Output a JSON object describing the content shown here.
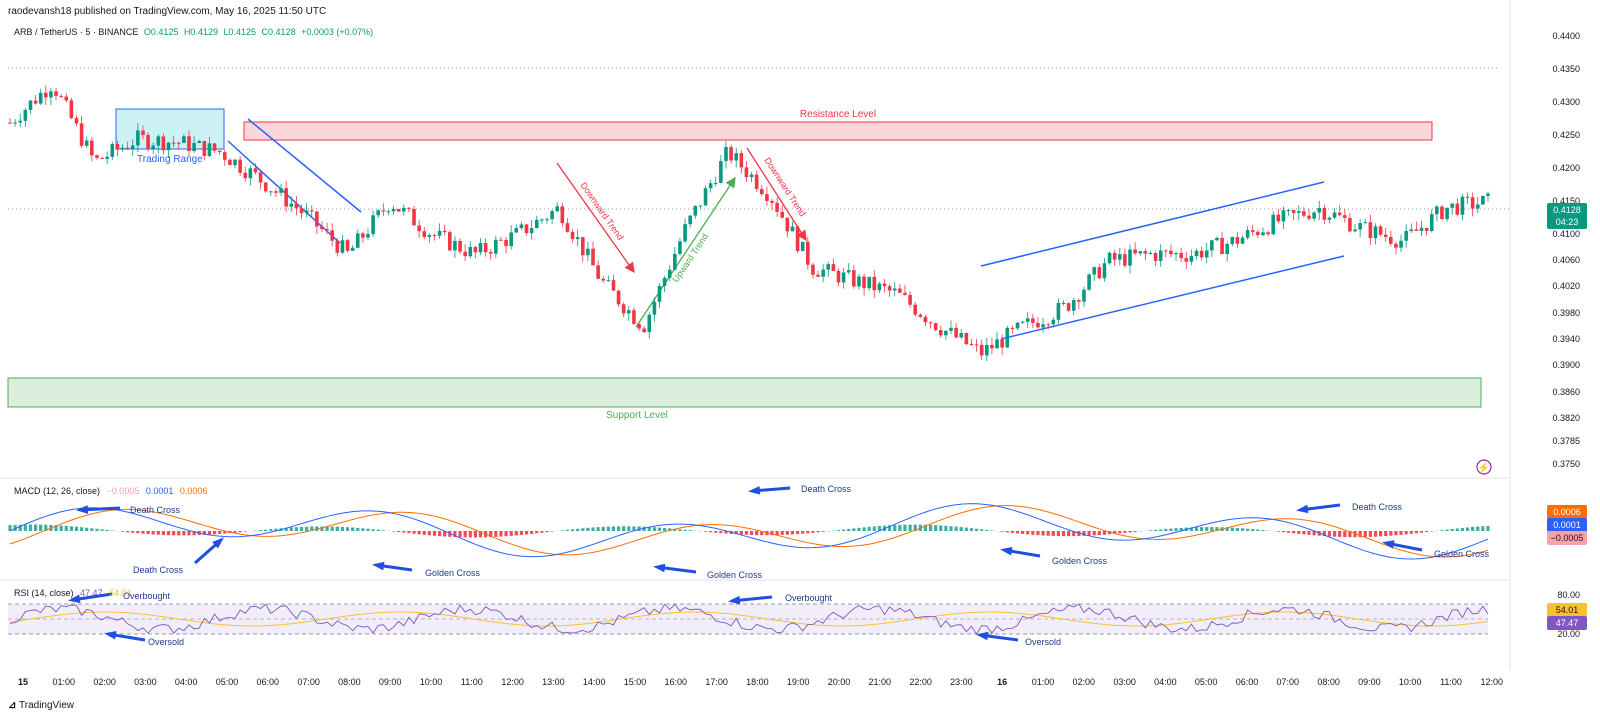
{
  "header": {
    "published_by": "raodevansh18 published on TradingView.com, May 16, 2025 11:50 UTC"
  },
  "symbol": {
    "title": "ARB / TetherUS · 5 · BINANCE",
    "open": "O0.4125",
    "high": "H0.4129",
    "low": "L0.4125",
    "close": "C0.4128",
    "change": "+0.0003 (+0.07%)"
  },
  "price_axis": {
    "ticks": [
      "0.4400",
      "0.4350",
      "0.4300",
      "0.4250",
      "0.4200",
      "0.4150",
      "0.4100",
      "0.4060",
      "0.4020",
      "0.3980",
      "0.3940",
      "0.3900",
      "0.3860",
      "0.3820",
      "0.3785",
      "0.3750"
    ],
    "last_price": "0.4128",
    "countdown": "04:23"
  },
  "time_axis": [
    "15",
    "01:00",
    "02:00",
    "03:00",
    "04:00",
    "05:00",
    "06:00",
    "07:00",
    "08:00",
    "09:00",
    "10:00",
    "11:00",
    "12:00",
    "13:00",
    "14:00",
    "15:00",
    "16:00",
    "17:00",
    "18:00",
    "19:00",
    "20:00",
    "21:00",
    "22:00",
    "23:00",
    "16",
    "01:00",
    "02:00",
    "03:00",
    "04:00",
    "05:00",
    "06:00",
    "07:00",
    "08:00",
    "09:00",
    "10:00",
    "11:00",
    "12:00"
  ],
  "annotations": {
    "trading_range": "Trading Range",
    "resistance": "Resistance Level",
    "support": "Support Level",
    "downward_trend_1": "Downward Trend",
    "upward_trend": "Upward Trend",
    "downward_trend_2": "Downward Trend"
  },
  "macd": {
    "title": "MACD (12, 26, close)",
    "hist": "−0.0005",
    "macd": "0.0001",
    "signal": "0.0006",
    "badge_signal": "0.0006",
    "badge_macd": "0.0001",
    "badge_hist": "−0.0005",
    "labels": [
      "Death Cross",
      "Death Cross",
      "Golden Cross",
      "Death Cross",
      "Golden Cross",
      "Golden Cross",
      "Death Cross",
      "Golden Cross"
    ]
  },
  "rsi": {
    "title": "RSI (14, close)",
    "rsi_value": "47.47",
    "ma_value": "54.01",
    "level_80": "80.00",
    "level_20": "20.00",
    "badge_ma": "54.01",
    "badge_rsi": "47.47",
    "labels": [
      "Overbought",
      "Oversold",
      "Overbought",
      "Oversold"
    ]
  },
  "brand": "TradingView",
  "colors": {
    "up": "#089981",
    "down": "#f23645",
    "macd_line": "#2962ff",
    "signal_line": "#ff6d00",
    "rsi_line": "#7e57c2",
    "rsi_ma": "#fbc02d",
    "arrow": "#1e4fe0"
  },
  "chart_data": {
    "type": "line",
    "title": "ARB / TetherUS · 5 · BINANCE",
    "x": [
      "15",
      "01:00",
      "02:00",
      "03:00",
      "04:00",
      "05:00",
      "06:00",
      "07:00",
      "08:00",
      "09:00",
      "10:00",
      "11:00",
      "12:00",
      "13:00",
      "14:00",
      "15:00",
      "16:00",
      "17:00",
      "18:00",
      "19:00",
      "20:00",
      "21:00",
      "22:00",
      "23:00",
      "16",
      "01:00",
      "02:00",
      "03:00",
      "04:00",
      "05:00",
      "06:00",
      "07:00",
      "08:00",
      "09:00",
      "10:00",
      "11:00"
    ],
    "series": [
      {
        "name": "ARB / TetherUS",
        "values": [
          0.427,
          0.433,
          0.421,
          0.4245,
          0.424,
          0.4225,
          0.418,
          0.413,
          0.407,
          0.415,
          0.41,
          0.407,
          0.41,
          0.414,
          0.403,
          0.396,
          0.411,
          0.4225,
          0.416,
          0.405,
          0.403,
          0.401,
          0.396,
          0.392,
          0.396,
          0.399,
          0.406,
          0.407,
          0.407,
          0.409,
          0.412,
          0.414,
          0.411,
          0.409,
          0.414,
          0.415
        ]
      }
    ],
    "ylim": [
      0.375,
      0.44
    ],
    "levels": {
      "resistance": [
        0.4234,
        0.4262
      ],
      "support": [
        0.3836,
        0.3866
      ]
    },
    "grid": false
  }
}
